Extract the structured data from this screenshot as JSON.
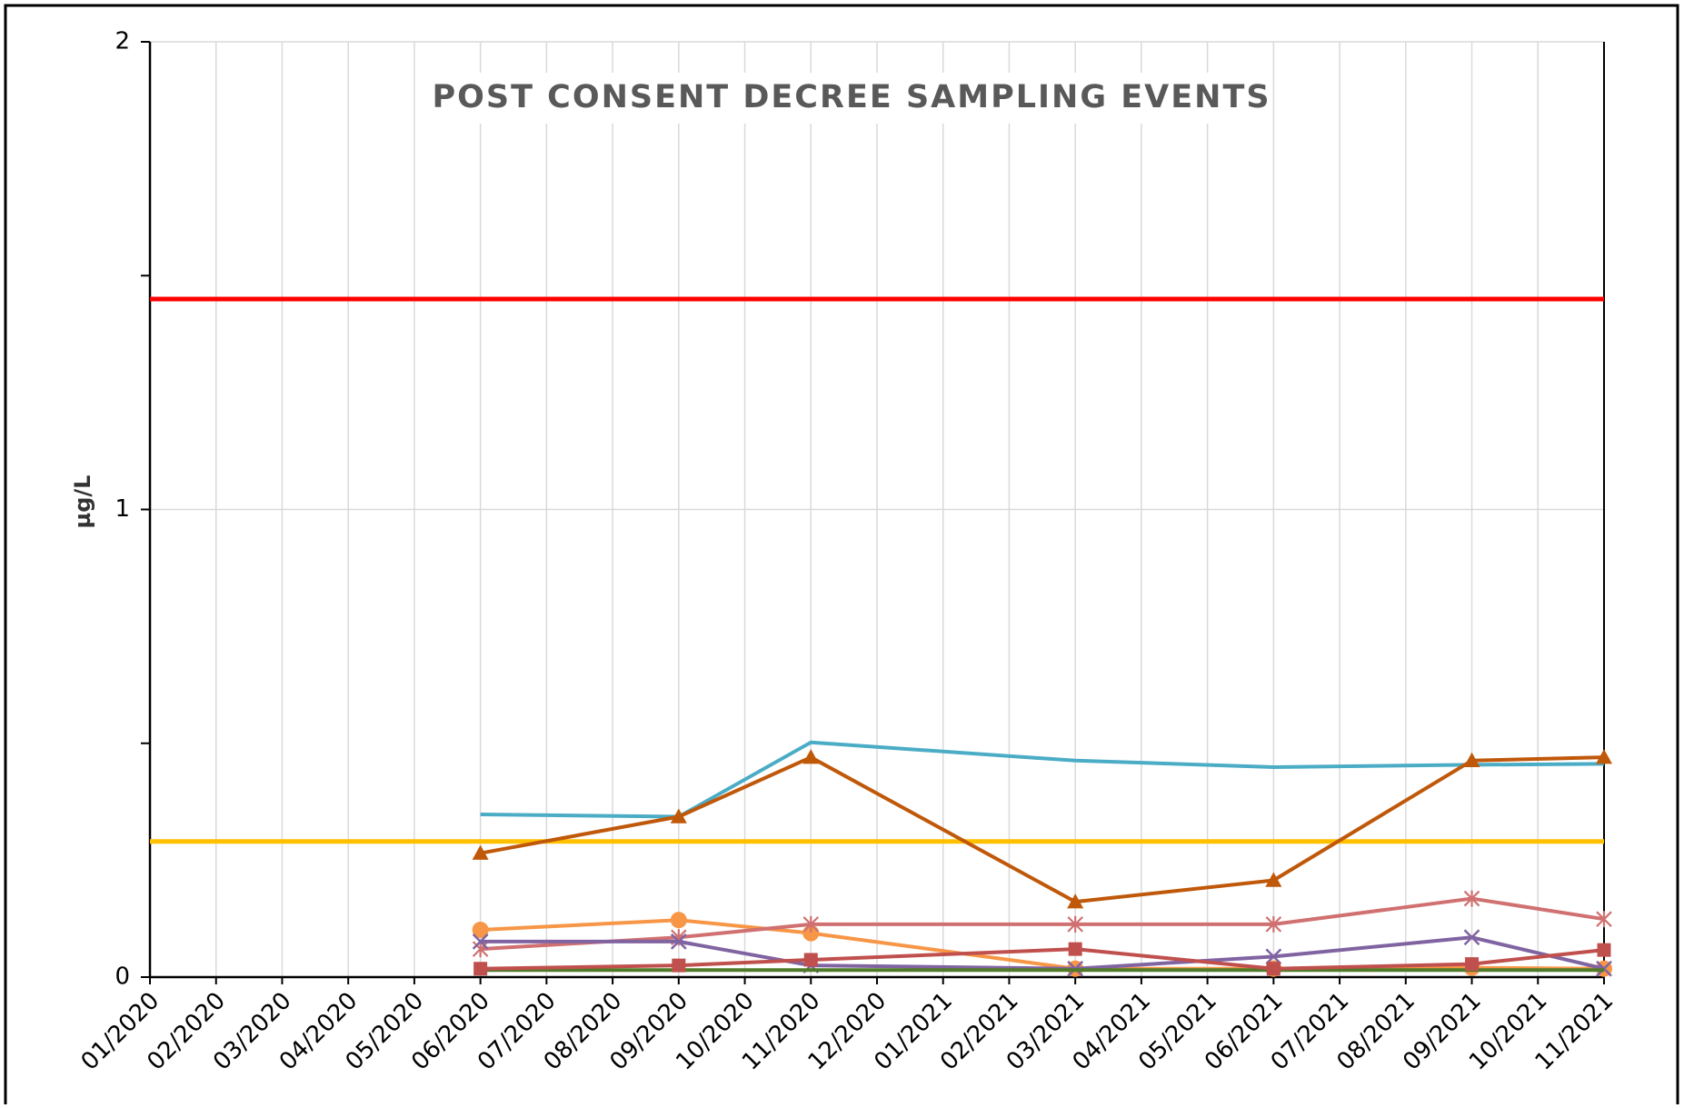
{
  "chart_data": {
    "type": "line",
    "title": "POST CONSENT DECREE SAMPLING EVENTS",
    "y_label": "µg/L",
    "categories": [
      "01/2020",
      "02/2020",
      "03/2020",
      "04/2020",
      "05/2020",
      "06/2020",
      "07/2020",
      "08/2020",
      "09/2020",
      "10/2020",
      "11/2020",
      "12/2020",
      "01/2021",
      "02/2021",
      "03/2021",
      "04/2021",
      "05/2021",
      "06/2021",
      "07/2021",
      "08/2021",
      "09/2021",
      "10/2021",
      "11/2021"
    ],
    "ylim": [
      0,
      2
    ],
    "yticks": [
      0,
      1,
      2
    ],
    "yminor": [
      0.5,
      1.5
    ],
    "grid": true,
    "hlines": [
      {
        "value": 1.45,
        "color": "#ff0000"
      },
      {
        "value": 0.29,
        "color": "#ffc000"
      }
    ],
    "series": [
      {
        "color": "#4bacc6",
        "marker": "none",
        "x": [
          "06/2020",
          "09/2020",
          "11/2020",
          "03/2021",
          "06/2021",
          "09/2021",
          "11/2021"
        ],
        "values": [
          0.348,
          0.343,
          0.502,
          0.463,
          0.449,
          0.454,
          0.456
        ]
      },
      {
        "color": "#c0580a",
        "marker": "triangle",
        "x": [
          "06/2020",
          "09/2020",
          "11/2020",
          "03/2021",
          "06/2021",
          "09/2021",
          "11/2021"
        ],
        "values": [
          0.265,
          0.343,
          0.47,
          0.161,
          0.207,
          0.463,
          0.47
        ]
      },
      {
        "color": "#f79646",
        "marker": "circle",
        "x": [
          "06/2020",
          "09/2020",
          "11/2020",
          "03/2021",
          "06/2021",
          "09/2021",
          "11/2021"
        ],
        "values": [
          0.101,
          0.122,
          0.094,
          0.018,
          0.018,
          0.02,
          0.018
        ]
      },
      {
        "color": "#d07070",
        "marker": "asterisk",
        "x": [
          "06/2020",
          "09/2020",
          "11/2020",
          "03/2021",
          "06/2021",
          "09/2021",
          "11/2021"
        ],
        "values": [
          0.06,
          0.085,
          0.113,
          0.113,
          0.113,
          0.168,
          0.124
        ]
      },
      {
        "color": "#8064a2",
        "marker": "x",
        "x": [
          "06/2020",
          "09/2020",
          "11/2020",
          "03/2021",
          "06/2021",
          "09/2021",
          "11/2021"
        ],
        "values": [
          0.076,
          0.076,
          0.025,
          0.018,
          0.044,
          0.085,
          0.018
        ]
      },
      {
        "color": "#4f7a28",
        "marker": "none",
        "x": [
          "06/2020",
          "09/2020",
          "11/2020",
          "03/2021",
          "06/2021",
          "09/2021",
          "11/2021"
        ],
        "values": [
          0.015,
          0.015,
          0.015,
          0.015,
          0.015,
          0.015,
          0.015
        ]
      },
      {
        "color": "#c0504d",
        "marker": "square",
        "x": [
          "06/2020",
          "09/2020",
          "11/2020",
          "03/2021",
          "06/2021",
          "09/2021",
          "11/2021"
        ],
        "values": [
          0.018,
          0.025,
          0.037,
          0.06,
          0.018,
          0.028,
          0.058
        ]
      }
    ]
  }
}
